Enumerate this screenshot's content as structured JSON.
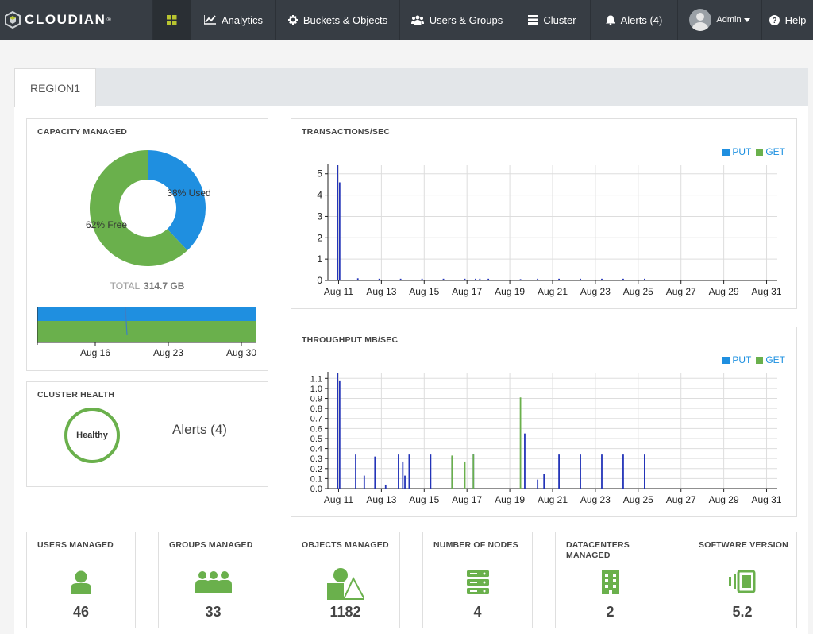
{
  "brand": {
    "name": "CLOUDIAN",
    "tm": "®"
  },
  "nav": {
    "dashboard_icon": "grid-icon",
    "analytics": "Analytics",
    "buckets": "Buckets & Objects",
    "users": "Users & Groups",
    "cluster": "Cluster",
    "alerts": "Alerts (4)",
    "admin": "Admin",
    "help": "Help"
  },
  "colors": {
    "put": "#1f8fe0",
    "get": "#6ab04c",
    "navbar": "#373d44",
    "bar_blue": "#2334b8"
  },
  "region_tab": "REGION1",
  "capacity": {
    "title": "CAPACITY MANAGED",
    "used_pct": 38,
    "free_pct": 62,
    "used_label": "38% Used",
    "free_label": "62% Free",
    "total_label": "TOTAL",
    "total_value": "314.7 GB",
    "mini_chart_labels": [
      "Aug 16",
      "Aug 23",
      "Aug 30"
    ]
  },
  "cluster_health": {
    "title": "CLUSTER HEALTH",
    "status": "Healthy",
    "alerts": "Alerts (4)"
  },
  "transactions": {
    "title": "TRANSACTIONS/SEC",
    "legend_put": "PUT",
    "legend_get": "GET"
  },
  "throughput": {
    "title": "THROUGHPUT MB/SEC",
    "legend_put": "PUT",
    "legend_get": "GET"
  },
  "chart_data": [
    {
      "type": "bar",
      "title": "TRANSACTIONS/SEC",
      "x_ticks": [
        "Aug 11",
        "Aug 13",
        "Aug 15",
        "Aug 17",
        "Aug 19",
        "Aug 21",
        "Aug 23",
        "Aug 25",
        "Aug 27",
        "Aug 29",
        "Aug 31"
      ],
      "y_ticks": [
        "0",
        "1",
        "2",
        "3",
        "4",
        "5"
      ],
      "ylim": [
        0,
        5.4
      ],
      "xlim_days": [
        10.5,
        31.5
      ],
      "series": [
        {
          "name": "PUT",
          "color": "#2334b8",
          "x": [
            10.95,
            11.05,
            11.9,
            12.9,
            13.9,
            14.9,
            15.9,
            16.9,
            17.4,
            17.6,
            18.0,
            19.5,
            20.3,
            21.3,
            22.3,
            23.3,
            24.3,
            25.3
          ],
          "y": [
            5.4,
            4.6,
            0.1,
            0.08,
            0.08,
            0.08,
            0.08,
            0.08,
            0.08,
            0.08,
            0.08,
            0.06,
            0.08,
            0.08,
            0.08,
            0.08,
            0.08,
            0.08
          ]
        },
        {
          "name": "GET",
          "color": "#6ab04c",
          "x": [],
          "y": []
        }
      ]
    },
    {
      "type": "bar",
      "title": "THROUGHPUT MB/SEC",
      "x_ticks": [
        "Aug 11",
        "Aug 13",
        "Aug 15",
        "Aug 17",
        "Aug 19",
        "Aug 21",
        "Aug 23",
        "Aug 25",
        "Aug 27",
        "Aug 29",
        "Aug 31"
      ],
      "y_ticks": [
        "0.0",
        "0.1",
        "0.2",
        "0.3",
        "0.4",
        "0.5",
        "0.6",
        "0.7",
        "0.8",
        "0.9",
        "1.0",
        "1.1"
      ],
      "ylim": [
        0,
        1.15
      ],
      "xlim_days": [
        10.5,
        31.5
      ],
      "series": [
        {
          "name": "PUT",
          "color": "#2334b8",
          "x": [
            10.95,
            11.05,
            11.8,
            12.2,
            12.7,
            13.2,
            13.8,
            14.0,
            14.1,
            14.3,
            15.3,
            16.3,
            17.3,
            19.7,
            20.3,
            20.6,
            21.3,
            22.3,
            23.3,
            24.3,
            25.3
          ],
          "y": [
            1.15,
            1.08,
            0.34,
            0.13,
            0.32,
            0.04,
            0.34,
            0.27,
            0.13,
            0.34,
            0.34,
            0.32,
            0.34,
            0.55,
            0.09,
            0.15,
            0.34,
            0.34,
            0.34,
            0.34,
            0.34
          ]
        },
        {
          "name": "GET",
          "color": "#6ab04c",
          "x": [
            16.3,
            16.9,
            17.3,
            19.5
          ],
          "y": [
            0.33,
            0.27,
            0.34,
            0.91
          ]
        }
      ]
    },
    {
      "type": "area",
      "title": "",
      "x_ticks": [
        "Aug 16",
        "Aug 23",
        "Aug 30"
      ],
      "series": [
        {
          "name": "Used",
          "color": "#1f8fe0",
          "values": [
            38
          ]
        },
        {
          "name": "Free",
          "color": "#6ab04c",
          "values": [
            62
          ]
        }
      ]
    }
  ],
  "stats": [
    {
      "label": "USERS MANAGED",
      "value": "46",
      "icon": "user-icon"
    },
    {
      "label": "GROUPS MANAGED",
      "value": "33",
      "icon": "group-icon"
    },
    {
      "label": "OBJECTS MANAGED",
      "value": "1182",
      "icon": "shapes-icon"
    },
    {
      "label": "NUMBER OF NODES",
      "value": "4",
      "icon": "server-icon"
    },
    {
      "label": "DATACENTERS MANAGED",
      "value": "2",
      "icon": "building-icon"
    },
    {
      "label": "SOFTWARE VERSION",
      "value": "5.2",
      "icon": "version-icon"
    }
  ]
}
